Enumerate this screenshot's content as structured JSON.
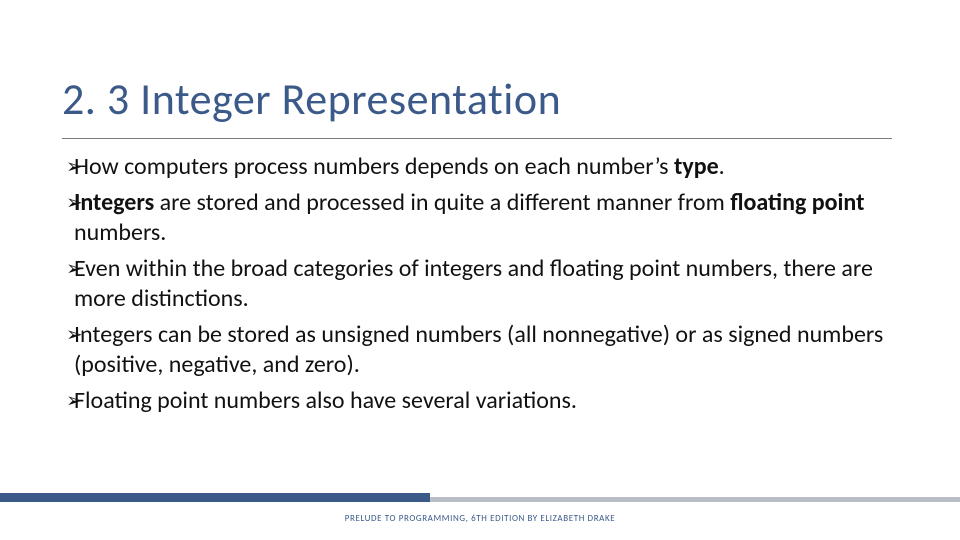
{
  "title": "2. 3 Integer Representation",
  "title_color": "#3b5a8a",
  "title_fontsize": 44,
  "body_fontsize": 24,
  "body_color": "#111111",
  "bullet_marker": "➢",
  "bullets": {
    "b0": {
      "pre": "How computers process numbers depends on each number’s ",
      "bold1": "type",
      "post": "."
    },
    "b1": {
      "bold1": "Integers",
      "mid": " are stored and processed in quite a different manner from ",
      "bold2": "floating point",
      "post": " numbers."
    },
    "b2": {
      "text": "Even within the broad categories of integers and floating point numbers, there are more distinctions."
    },
    "b3": {
      "text": "Integers can be stored as unsigned numbers (all nonnegative) or as signed numbers (positive, negative, and zero)."
    },
    "b4": {
      "text": "Floating point numbers also have several variations."
    }
  },
  "footer": "PRELUDE TO PROGRAMMING, 6TH EDITION BY ELIZABETH DRAKE",
  "footer_color": "#3b5a8a",
  "accent_bar_blue": "#3b5a8a",
  "accent_bar_gray": "#b9bec6",
  "hr_color": "#7a7a7a",
  "background_color": "#ffffff"
}
